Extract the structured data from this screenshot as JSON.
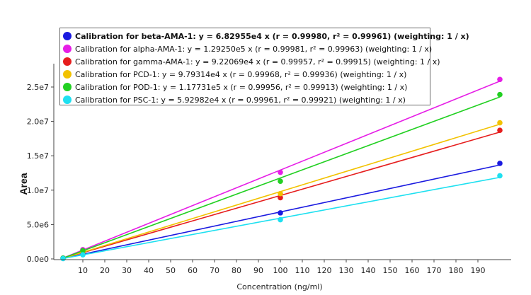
{
  "chart_data": {
    "type": "scatter",
    "xlabel": "Concentration (ng/ml)",
    "ylabel": "Area",
    "xlim": [
      0,
      200
    ],
    "ylim": [
      0,
      27500000
    ],
    "x_ticks": [
      "10",
      "20",
      "30",
      "40",
      "50",
      "60",
      "70",
      "80",
      "90",
      "100",
      "110",
      "120",
      "130",
      "140",
      "150",
      "160",
      "170",
      "180",
      "190"
    ],
    "y_ticks": [
      "0.0e0",
      "5.0e6",
      "1.0e7",
      "1.5e7",
      "2.0e7",
      "2.5e7"
    ],
    "legend_position": "top-left",
    "series": [
      {
        "name": "beta-AMA-1",
        "legend_label": "Calibration for beta-AMA-1: y = 6.82955e4 x (r = 0.99980, r² = 0.99961)  (weighting: 1 / x)",
        "color": "#1a1ae0",
        "slope": 68295.5,
        "x": [
          1,
          10,
          100,
          200
        ],
        "y": [
          68000,
          690000,
          6700000,
          13900000
        ]
      },
      {
        "name": "alpha-AMA-1",
        "legend_label": "Calibration for alpha-AMA-1: y = 1.29250e5 x (r = 0.99981, r² = 0.99963)  (weighting: 1 / x)",
        "color": "#e61ee6",
        "slope": 129250,
        "x": [
          1,
          10,
          100,
          200
        ],
        "y": [
          129000,
          1350000,
          12600000,
          26100000
        ]
      },
      {
        "name": "gamma-AMA-1",
        "legend_label": "Calibration for gamma-AMA-1: y = 9.22069e4 x (r = 0.99957, r² = 0.99915)  (weighting: 1 / x)",
        "color": "#e61e1e",
        "slope": 92206.9,
        "x": [
          1,
          10,
          100,
          200
        ],
        "y": [
          92000,
          950000,
          8900000,
          18700000
        ]
      },
      {
        "name": "PCD-1",
        "legend_label": "Calibration for PCD-1: y = 9.79314e4 x (r = 0.99968, r² = 0.99936)  (weighting: 1 / x)",
        "color": "#f2c200",
        "slope": 97931.4,
        "x": [
          1,
          10,
          100,
          200
        ],
        "y": [
          98000,
          1000000,
          9500000,
          19800000
        ]
      },
      {
        "name": "POD-1",
        "legend_label": "Calibration for POD-1: y = 1.17731e5 x (r = 0.99956, r² = 0.99913)  (weighting: 1 / x)",
        "color": "#22d022",
        "slope": 117731,
        "x": [
          1,
          10,
          100,
          200
        ],
        "y": [
          118000,
          1200000,
          11300000,
          23900000
        ]
      },
      {
        "name": "PSC-1",
        "legend_label": "Calibration for PSC-1: y = 5.92982e4 x (r = 0.99961, r² = 0.99921)  (weighting: 1 / x)",
        "color": "#1ee0f0",
        "slope": 59298.2,
        "x": [
          1,
          10,
          100,
          200
        ],
        "y": [
          59000,
          600000,
          5700000,
          12100000
        ]
      }
    ]
  }
}
